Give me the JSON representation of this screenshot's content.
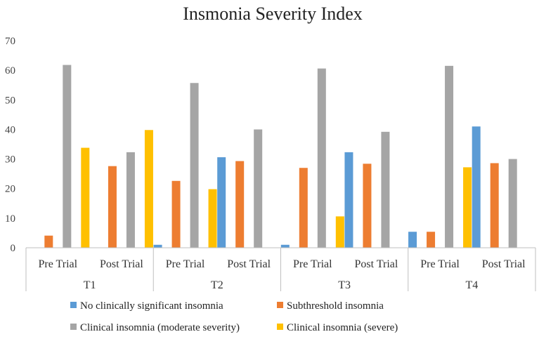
{
  "chart_data": {
    "type": "bar",
    "title": "Insmonia Severity Index",
    "xlabel": "",
    "ylabel": "",
    "ylim": [
      0,
      70
    ],
    "yticks": [
      0,
      10,
      20,
      30,
      40,
      50,
      60,
      70
    ],
    "groups": [
      "T1",
      "T2",
      "T3",
      "T4"
    ],
    "subcategories": [
      "Pre Trial",
      "Post Trial"
    ],
    "categories": [
      "T1 Pre Trial",
      "T1 Post Trial",
      "T2 Pre Trial",
      "T2 Post Trial",
      "T3 Pre Trial",
      "T3 Post Trial",
      "T4 Pre Trial",
      "T4 Post Trial"
    ],
    "series": [
      {
        "name": "No clinically significant insomnia",
        "color": "#5B9BD5",
        "values": [
          0,
          0,
          1,
          30.6,
          1,
          32.3,
          5.4,
          41
        ]
      },
      {
        "name": "Subthreshold insomnia",
        "color": "#ED7D31",
        "values": [
          4.1,
          27.6,
          22.6,
          29.3,
          27,
          28.4,
          5.4,
          28.6
        ]
      },
      {
        "name": "Clinical insomnia (moderate severity)",
        "color": "#A5A5A5",
        "values": [
          61.8,
          32.3,
          55.7,
          40,
          60.6,
          39.2,
          61.5,
          30
        ]
      },
      {
        "name": "Clinical insomnia (severe)",
        "color": "#FFC000",
        "values": [
          33.8,
          39.8,
          19.8,
          0,
          10.6,
          0,
          27.2,
          0
        ]
      }
    ],
    "legend_position": "bottom",
    "grid": false
  }
}
